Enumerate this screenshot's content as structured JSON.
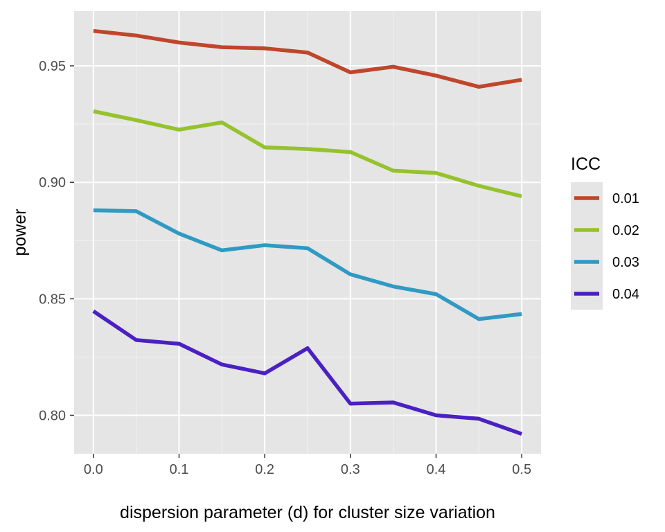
{
  "chart_data": {
    "type": "line",
    "title": "",
    "xlabel": "dispersion parameter (d) for cluster size variation",
    "ylabel": "power",
    "x": [
      0.0,
      0.05,
      0.1,
      0.15,
      0.2,
      0.25,
      0.3,
      0.35,
      0.4,
      0.45,
      0.5
    ],
    "x_ticks": [
      0.0,
      0.1,
      0.2,
      0.3,
      0.4,
      0.5
    ],
    "x_tick_labels": [
      "0.0",
      "0.1",
      "0.2",
      "0.3",
      "0.4",
      "0.5"
    ],
    "y_ticks": [
      0.8,
      0.85,
      0.9,
      0.95
    ],
    "y_tick_labels": [
      "0.80",
      "0.85",
      "0.90",
      "0.95"
    ],
    "xlim": [
      -0.0225,
      0.5225
    ],
    "ylim": [
      0.7835,
      0.9735
    ],
    "grid": true,
    "background": "#e5e5e5",
    "legend": {
      "title": "ICC",
      "position": "right"
    },
    "series": [
      {
        "name": "0.01",
        "color": "#c0462b",
        "values": [
          0.965,
          0.963,
          0.96,
          0.958,
          0.9575,
          0.9557,
          0.9472,
          0.9496,
          0.9458,
          0.941,
          0.944
        ]
      },
      {
        "name": "0.02",
        "color": "#95c22d",
        "values": [
          0.9305,
          0.9267,
          0.9226,
          0.9257,
          0.915,
          0.9143,
          0.913,
          0.905,
          0.904,
          0.8985,
          0.894
        ]
      },
      {
        "name": "0.03",
        "color": "#2f9ac3",
        "values": [
          0.888,
          0.8876,
          0.878,
          0.8708,
          0.873,
          0.8717,
          0.8605,
          0.8553,
          0.852,
          0.8413,
          0.8435
        ]
      },
      {
        "name": "0.04",
        "color": "#4a20c3",
        "values": [
          0.8447,
          0.8323,
          0.8307,
          0.8218,
          0.818,
          0.8288,
          0.805,
          0.8055,
          0.8,
          0.7985,
          0.792
        ]
      }
    ]
  }
}
